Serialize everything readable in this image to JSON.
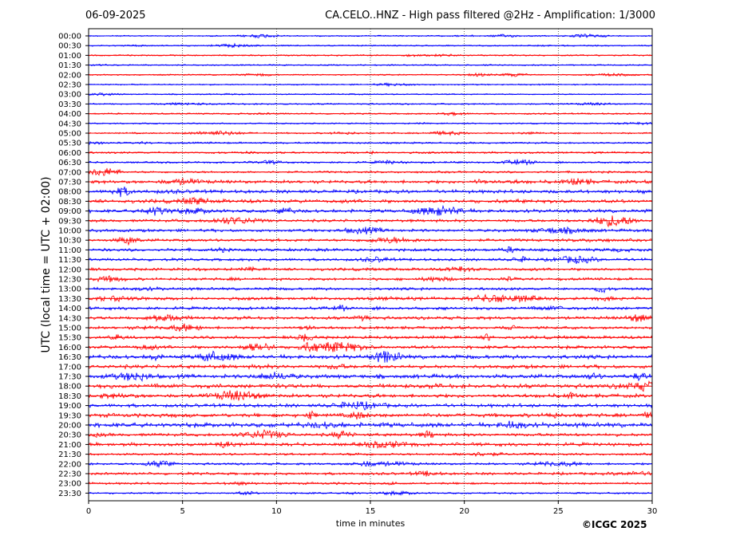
{
  "header": {
    "date": "06-09-2025",
    "title": "CA.CELO..HNZ - High pass filtered @2Hz - Amplification: 1/3000"
  },
  "footer": {
    "copyright": "©ICGC 2025"
  },
  "colors": {
    "red": "#ff0000",
    "blue": "#0000ff",
    "grid": "#000000"
  },
  "chart_data": {
    "type": "line",
    "title": "CA.CELO..HNZ - High pass filtered @2Hz - Amplification: 1/3000",
    "xlabel": "time in minutes",
    "ylabel": "UTC (local time = UTC + 02:00)",
    "xlim": [
      0,
      30
    ],
    "x_ticks": [
      "0",
      "5",
      "10",
      "15",
      "20",
      "25",
      "30"
    ],
    "vertical_gridlines": [
      5,
      10,
      15,
      20,
      25
    ],
    "grid_style": "dotted",
    "row_colors": [
      "blue",
      "blue",
      "red",
      "blue",
      "red",
      "blue",
      "blue",
      "blue",
      "red",
      "blue",
      "red",
      "blue",
      "red",
      "blue",
      "red",
      "red",
      "blue",
      "red",
      "blue",
      "red",
      "blue",
      "red",
      "blue",
      "blue",
      "red",
      "red",
      "blue",
      "red",
      "blue",
      "red",
      "red",
      "red",
      "red",
      "blue",
      "red",
      "blue",
      "red",
      "red",
      "blue",
      "red",
      "blue",
      "red",
      "red",
      "red",
      "blue",
      "red",
      "red",
      "blue"
    ],
    "series": [
      {
        "name": "00:00",
        "activity": 0.05
      },
      {
        "name": "00:30",
        "activity": 0.06
      },
      {
        "name": "01:00",
        "activity": 0.07
      },
      {
        "name": "01:30",
        "activity": 0.06
      },
      {
        "name": "02:00",
        "activity": 0.05
      },
      {
        "name": "02:30",
        "activity": 0.06
      },
      {
        "name": "03:00",
        "activity": 0.05
      },
      {
        "name": "03:30",
        "activity": 0.09
      },
      {
        "name": "04:00",
        "activity": 0.08
      },
      {
        "name": "04:30",
        "activity": 0.07
      },
      {
        "name": "05:00",
        "activity": 0.1
      },
      {
        "name": "05:30",
        "activity": 0.14
      },
      {
        "name": "06:00",
        "activity": 0.16
      },
      {
        "name": "06:30",
        "activity": 0.16
      },
      {
        "name": "07:00",
        "activity": 0.18
      },
      {
        "name": "07:30",
        "activity": 0.38
      },
      {
        "name": "08:00",
        "activity": 0.42
      },
      {
        "name": "08:30",
        "activity": 0.45
      },
      {
        "name": "09:00",
        "activity": 0.4
      },
      {
        "name": "09:30",
        "activity": 0.3
      },
      {
        "name": "10:00",
        "activity": 0.32
      },
      {
        "name": "10:30",
        "activity": 0.3
      },
      {
        "name": "11:00",
        "activity": 0.35
      },
      {
        "name": "11:30",
        "activity": 0.3
      },
      {
        "name": "12:00",
        "activity": 0.3
      },
      {
        "name": "12:30",
        "activity": 0.28
      },
      {
        "name": "13:00",
        "activity": 0.3
      },
      {
        "name": "13:30",
        "activity": 0.34
      },
      {
        "name": "14:00",
        "activity": 0.34
      },
      {
        "name": "14:30",
        "activity": 0.36
      },
      {
        "name": "15:00",
        "activity": 0.3
      },
      {
        "name": "15:30",
        "activity": 0.33
      },
      {
        "name": "16:00",
        "activity": 0.4
      },
      {
        "name": "16:30",
        "activity": 0.5
      },
      {
        "name": "17:00",
        "activity": 0.45
      },
      {
        "name": "17:30",
        "activity": 0.5
      },
      {
        "name": "18:00",
        "activity": 0.55
      },
      {
        "name": "18:30",
        "activity": 0.45
      },
      {
        "name": "19:00",
        "activity": 0.42
      },
      {
        "name": "19:30",
        "activity": 0.48
      },
      {
        "name": "20:00",
        "activity": 0.6
      },
      {
        "name": "20:30",
        "activity": 0.35
      },
      {
        "name": "21:00",
        "activity": 0.4
      },
      {
        "name": "21:30",
        "activity": 0.2
      },
      {
        "name": "22:00",
        "activity": 0.22
      },
      {
        "name": "22:30",
        "activity": 0.28
      },
      {
        "name": "23:00",
        "activity": 0.2
      },
      {
        "name": "23:30",
        "activity": 0.12
      }
    ]
  }
}
